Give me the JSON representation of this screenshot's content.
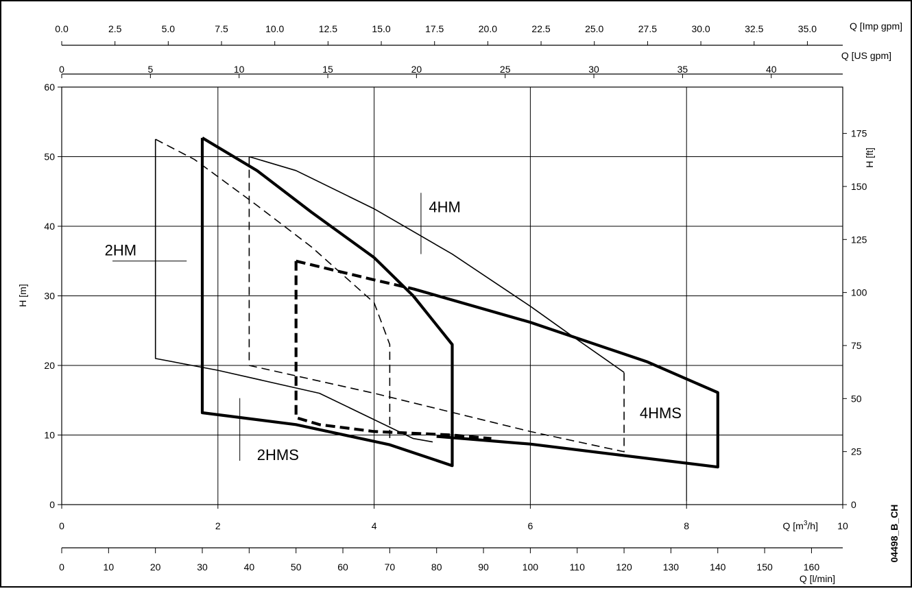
{
  "chart_data": {
    "type": "line",
    "title": "",
    "code": "04498_B_CH",
    "axes": {
      "x_m3h": {
        "label": "Q [m³/h]",
        "label_main": "Q [m",
        "label_sup": "3",
        "label_end": "/h]",
        "range": [
          0,
          10
        ],
        "ticks": [
          "0",
          "2",
          "4",
          "6",
          "8",
          "10"
        ]
      },
      "x_lmin": {
        "label": "Q [l/min]",
        "range": [
          0,
          166.667
        ],
        "ticks": [
          "0",
          "10",
          "20",
          "30",
          "40",
          "50",
          "60",
          "70",
          "80",
          "90",
          "100",
          "110",
          "120",
          "130",
          "140",
          "150",
          "160"
        ]
      },
      "x_usgpm": {
        "label": "Q [US gpm]",
        "range": [
          0,
          44.03
        ],
        "ticks": [
          "0",
          "5",
          "10",
          "15",
          "20",
          "25",
          "30",
          "35",
          "40"
        ]
      },
      "x_impgpm": {
        "label": "Q [Imp gpm]",
        "range": [
          0,
          36.66
        ],
        "ticks": [
          "0.0",
          "2.5",
          "5.0",
          "7.5",
          "10.0",
          "12.5",
          "15.0",
          "17.5",
          "20.0",
          "22.5",
          "25.0",
          "27.5",
          "30.0",
          "32.5",
          "35.0"
        ]
      },
      "y_m": {
        "label": "H [m]",
        "range": [
          0,
          60
        ],
        "ticks": [
          "0",
          "10",
          "20",
          "30",
          "40",
          "50",
          "60"
        ]
      },
      "y_ft": {
        "label": "H [ft]",
        "range": [
          0,
          196.85
        ],
        "ticks": [
          "0",
          "25",
          "50",
          "75",
          "100",
          "125",
          "150",
          "175"
        ]
      }
    },
    "grid": true,
    "series": [
      {
        "name": "2HM",
        "style": "thin-solid",
        "points": [
          [
            1.2,
            52.5
          ],
          [
            1.2,
            21.0
          ],
          [
            2.0,
            19.3
          ],
          [
            3.3,
            16.0
          ],
          [
            4.5,
            9.5
          ],
          [
            4.75,
            9.0
          ]
        ]
      },
      {
        "name": "2HM",
        "style": "thin-dashed",
        "points": [
          [
            1.2,
            52.5
          ],
          [
            1.7,
            49.6
          ],
          [
            2.5,
            43.0
          ],
          [
            3.2,
            37.0
          ],
          [
            4.0,
            29.0
          ],
          [
            4.2,
            23.0
          ],
          [
            4.2,
            9.0
          ]
        ]
      },
      {
        "name": "2HMS",
        "style": "thick-solid",
        "points": [
          [
            1.8,
            52.7
          ],
          [
            1.8,
            13.2
          ],
          [
            3.0,
            11.5
          ],
          [
            4.2,
            8.6
          ],
          [
            5.0,
            5.6
          ],
          [
            5.0,
            23.0
          ],
          [
            4.5,
            30.0
          ],
          [
            4.0,
            35.5
          ],
          [
            3.2,
            42.0
          ],
          [
            2.5,
            48.0
          ],
          [
            1.8,
            52.7
          ]
        ]
      },
      {
        "name": "4HM",
        "style": "thin-solid",
        "points": [
          [
            2.4,
            50.0
          ],
          [
            3.0,
            48.0
          ],
          [
            4.0,
            42.5
          ],
          [
            5.0,
            36.0
          ],
          [
            6.0,
            28.5
          ],
          [
            6.5,
            24.5
          ],
          [
            7.2,
            19.0
          ]
        ]
      },
      {
        "name": "4HM",
        "style": "thin-dashed",
        "points": [
          [
            2.4,
            50.0
          ],
          [
            2.4,
            20.0
          ],
          [
            4.0,
            16.0
          ],
          [
            6.0,
            10.5
          ],
          [
            7.2,
            7.6
          ],
          [
            7.2,
            19.0
          ]
        ]
      },
      {
        "name": "4HMS",
        "style": "thick-dashed",
        "points": [
          [
            3.0,
            35.0
          ],
          [
            3.0,
            12.5
          ],
          [
            3.3,
            11.5
          ],
          [
            4.0,
            10.5
          ],
          [
            5.0,
            10.0
          ],
          [
            5.5,
            9.5
          ]
        ]
      },
      {
        "name": "4HMS",
        "style": "thick-dashed",
        "points": [
          [
            3.0,
            35.0
          ],
          [
            4.0,
            32.3
          ],
          [
            4.5,
            31.0
          ]
        ]
      },
      {
        "name": "4HMS",
        "style": "thick-solid",
        "points": [
          [
            4.5,
            31.0
          ],
          [
            6.0,
            26.2
          ],
          [
            7.5,
            20.5
          ],
          [
            8.4,
            16.1
          ],
          [
            8.4,
            5.4
          ],
          [
            6.0,
            8.7
          ],
          [
            4.8,
            9.8
          ]
        ]
      }
    ],
    "annotations": [
      {
        "text": "2HM",
        "x": 0.55,
        "y": 35.8,
        "leader": [
          [
            0.65,
            35.0
          ],
          [
            1.6,
            35.0
          ]
        ]
      },
      {
        "text": "4HM",
        "x": 4.7,
        "y": 42.0,
        "leader": [
          [
            4.6,
            44.8
          ],
          [
            4.6,
            36.0
          ]
        ]
      },
      {
        "text": "2HMS",
        "x": 2.5,
        "y": 6.4,
        "leader": [
          [
            2.28,
            15.3
          ],
          [
            2.28,
            6.3
          ]
        ]
      },
      {
        "text": "4HMS",
        "x": 7.4,
        "y": 12.4,
        "leader": [
          [
            8.0,
            10.3
          ],
          [
            8.0,
            0.5
          ]
        ]
      }
    ]
  }
}
